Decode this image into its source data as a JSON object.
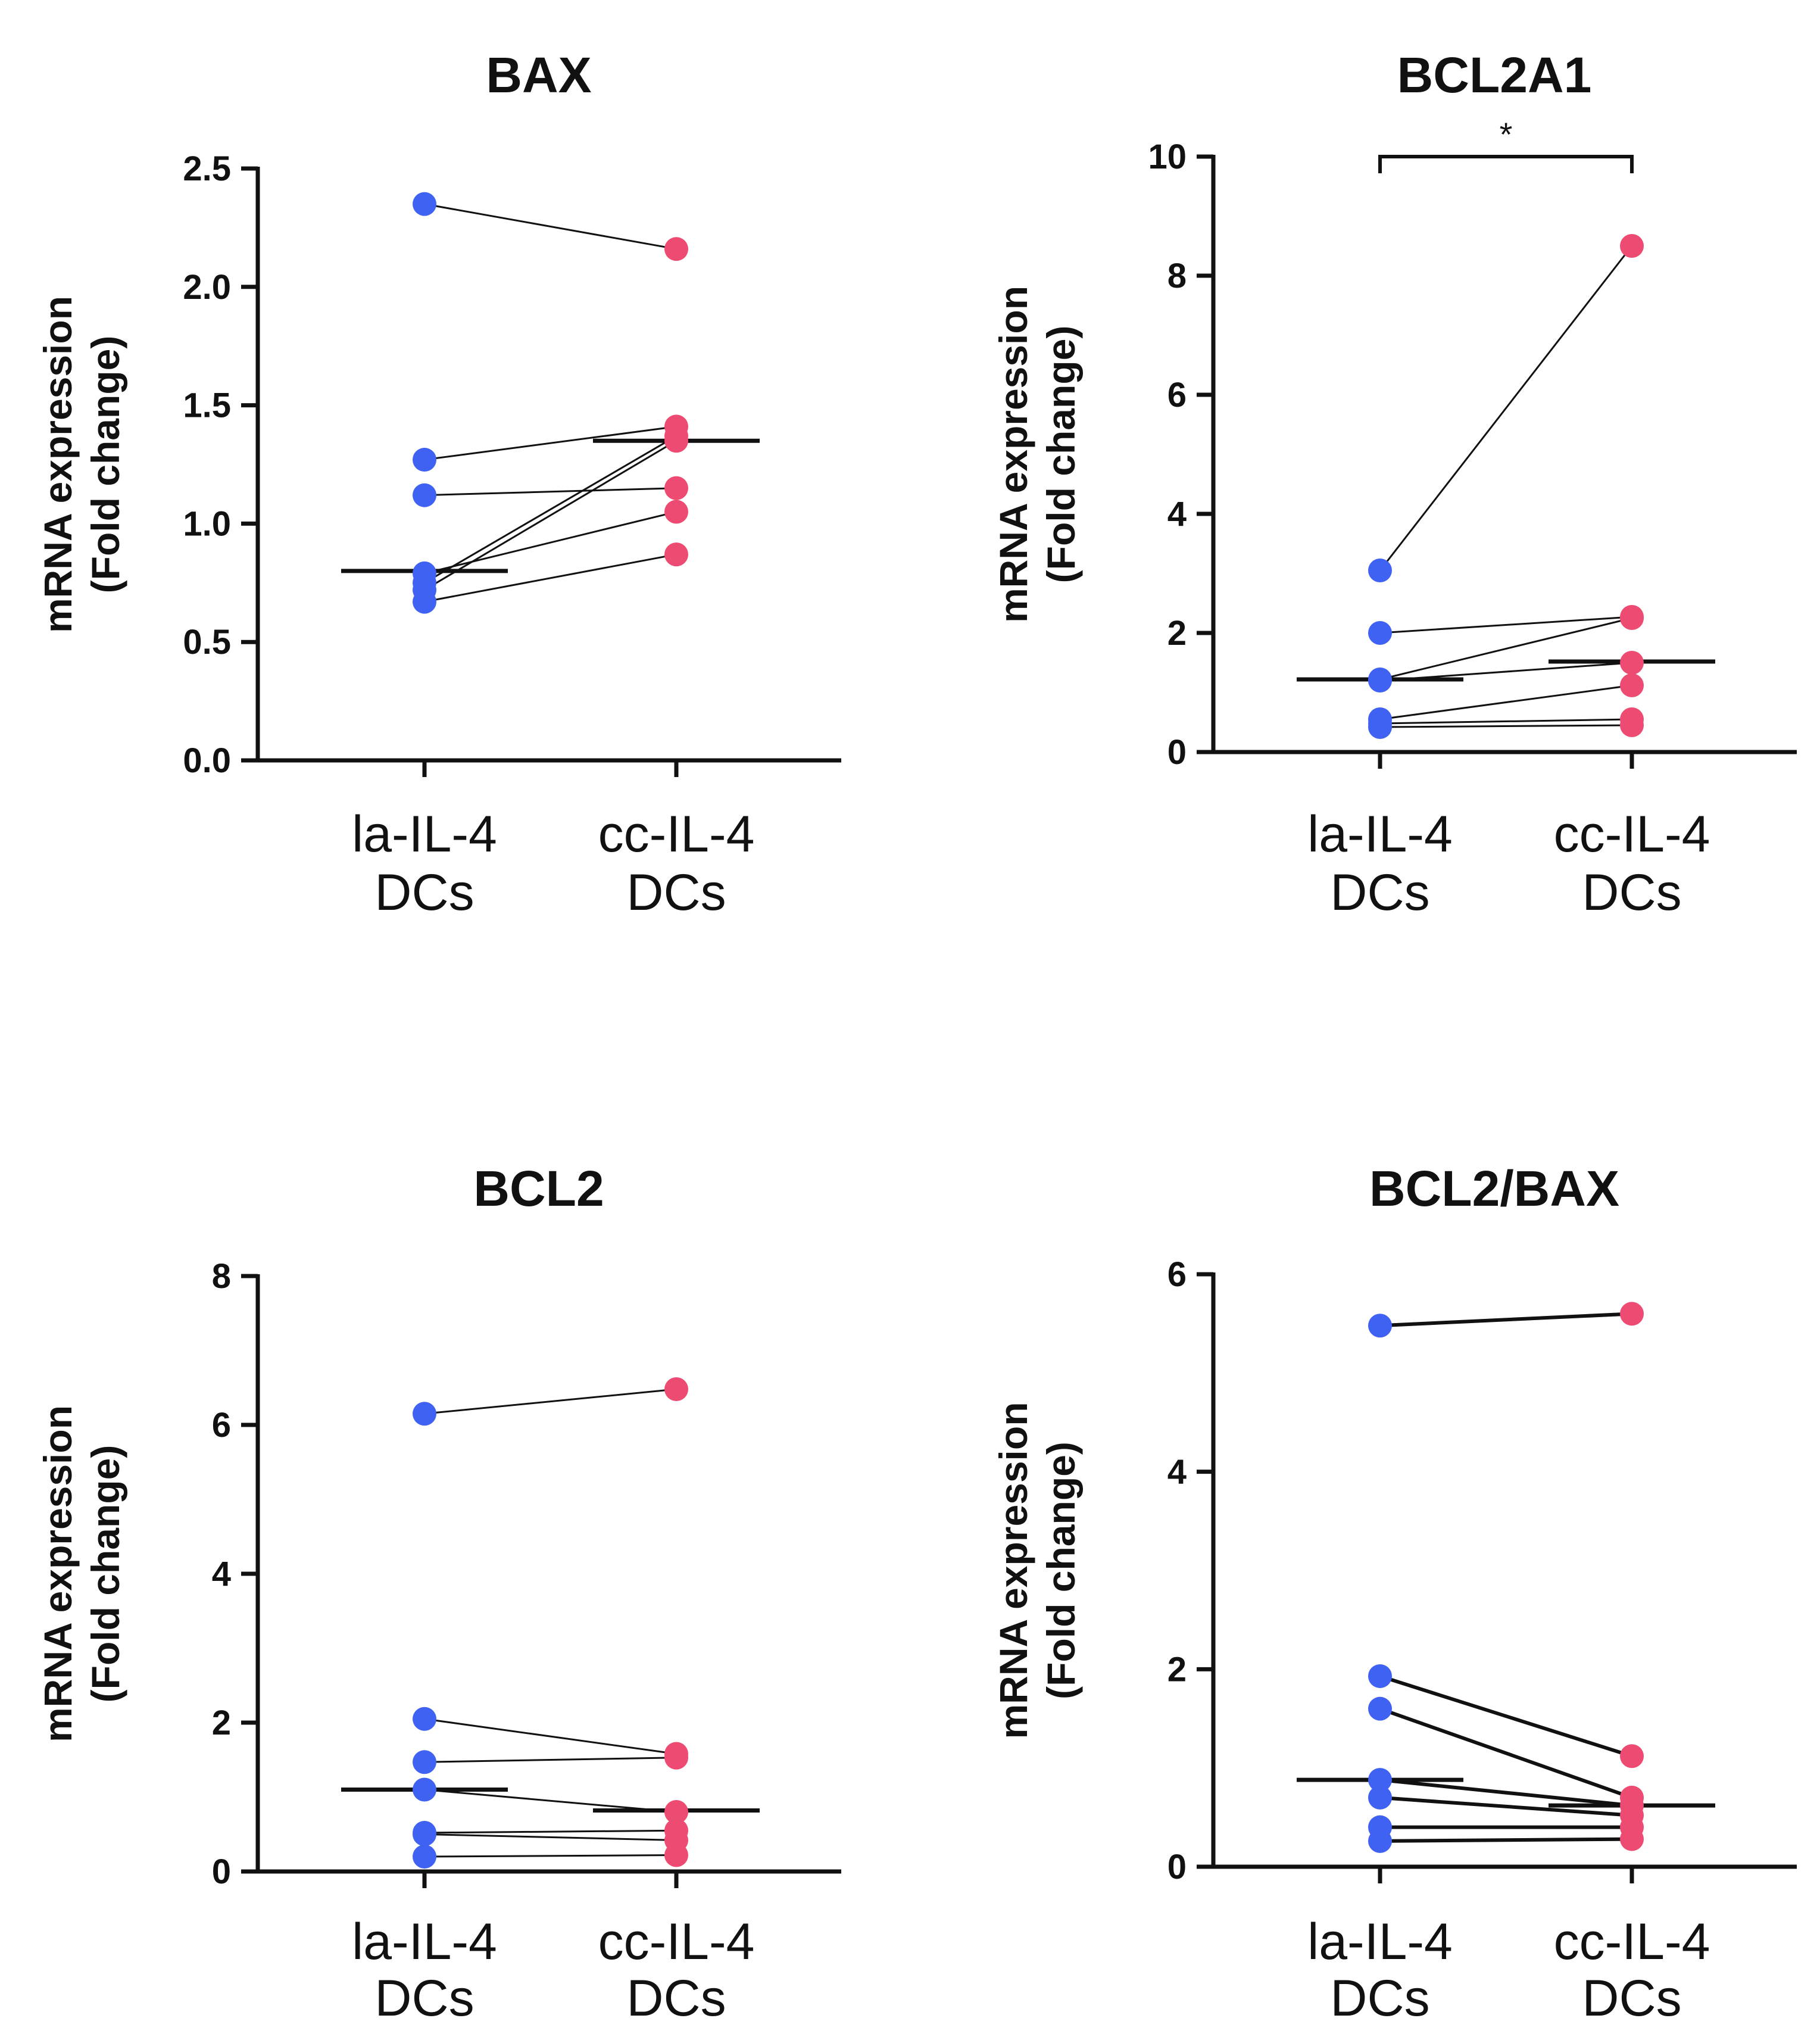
{
  "figure": {
    "y_axis_title_line1": "mRNA expression",
    "y_axis_title_line2": "(Fold change)",
    "group_labels": [
      {
        "line1": "la-IL-4",
        "line2": "DCs"
      },
      {
        "line1": "cc-IL-4",
        "line2": "DCs"
      }
    ],
    "colors": {
      "la": "#4062f2",
      "cc": "#ee4b72",
      "ink": "#111111"
    }
  },
  "chart_data": [
    {
      "type": "scatter",
      "title": "BAX",
      "categories": [
        "la-IL-4 DCs",
        "cc-IL-4 DCs"
      ],
      "ylabel": "mRNA expression (Fold change)",
      "ylim": [
        0,
        2.5
      ],
      "yticks": [
        "0.0",
        "0.5",
        "1.0",
        "1.5",
        "2.0",
        "2.5"
      ],
      "pairs": [
        [
          2.35,
          2.16
        ],
        [
          1.27,
          1.41
        ],
        [
          1.12,
          1.15
        ],
        [
          0.79,
          1.05
        ],
        [
          0.75,
          1.37
        ],
        [
          0.72,
          1.35
        ],
        [
          0.67,
          0.87
        ]
      ],
      "medians": [
        0.8,
        1.35
      ],
      "significance": null
    },
    {
      "type": "scatter",
      "title": "BCL2A1",
      "categories": [
        "la-IL-4 DCs",
        "cc-IL-4 DCs"
      ],
      "ylabel": "mRNA expression (Fold change)",
      "ylim": [
        0,
        10
      ],
      "yticks": [
        "0",
        "2",
        "4",
        "6",
        "8",
        "10"
      ],
      "pairs": [
        [
          3.05,
          8.5
        ],
        [
          2.0,
          2.27
        ],
        [
          1.22,
          2.25
        ],
        [
          1.2,
          1.5
        ],
        [
          0.55,
          1.12
        ],
        [
          0.48,
          0.55
        ],
        [
          0.42,
          0.45
        ]
      ],
      "medians": [
        1.22,
        1.52
      ],
      "significance": {
        "label": "*",
        "from": 0,
        "to": 1
      }
    },
    {
      "type": "scatter",
      "title": "BCL2",
      "categories": [
        "la-IL-4 DCs",
        "cc-IL-4 DCs"
      ],
      "ylabel": "mRNA expression (Fold change)",
      "ylim": [
        0,
        8
      ],
      "yticks": [
        "0",
        "2",
        "4",
        "6",
        "8"
      ],
      "pairs": [
        [
          6.15,
          6.48
        ],
        [
          2.05,
          1.58
        ],
        [
          1.47,
          1.53
        ],
        [
          1.1,
          0.8
        ],
        [
          0.52,
          0.55
        ],
        [
          0.5,
          0.42
        ],
        [
          0.2,
          0.22
        ]
      ],
      "medians": [
        1.1,
        0.82
      ],
      "significance": null
    },
    {
      "type": "scatter",
      "title": "BCL2/BAX",
      "categories": [
        "la-IL-4 DCs",
        "cc-IL-4 DCs"
      ],
      "ylabel": "mRNA expression (Fold change)",
      "ylim": [
        0,
        6
      ],
      "yticks": [
        "0",
        "2",
        "4",
        "6"
      ],
      "pairs": [
        [
          5.48,
          5.6
        ],
        [
          1.93,
          1.12
        ],
        [
          1.6,
          0.7
        ],
        [
          0.88,
          0.62
        ],
        [
          0.7,
          0.52
        ],
        [
          0.4,
          0.4
        ],
        [
          0.26,
          0.28
        ]
      ],
      "medians": [
        0.88,
        0.62
      ],
      "significance": null
    }
  ]
}
